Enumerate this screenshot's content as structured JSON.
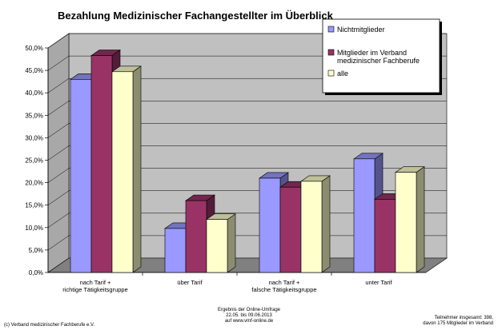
{
  "chart_data": {
    "type": "bar",
    "title": "Bezahlung Medizinischer Fachangestellter im Überblick",
    "categories": [
      [
        "nach Tarif +",
        "richtige Tätigkeitsgruppe"
      ],
      [
        "über Tarif"
      ],
      [
        "nach Tarif +",
        "falsche Tätigkeitsgruppe"
      ],
      [
        "unter Tarif"
      ]
    ],
    "series": [
      {
        "name": "Nichtmitglieder",
        "color": "#9999ff",
        "values": [
          43.0,
          9.8,
          21.0,
          25.3
        ]
      },
      {
        "name": "Mitglieder im Verband medizinischer Fachberufe",
        "color": "#993366",
        "values": [
          48.3,
          16.0,
          19.0,
          16.3
        ]
      },
      {
        "name": "alle",
        "color": "#ffffcc",
        "values": [
          44.7,
          11.8,
          20.3,
          22.3
        ]
      }
    ],
    "ylim": [
      0,
      50
    ],
    "yticks": [
      "0,0%",
      "5,0%",
      "10,0%",
      "15,0%",
      "20,0%",
      "25,0%",
      "30,0%",
      "35,0%",
      "40,0%",
      "45,0%",
      "50,0%"
    ],
    "legend": {
      "position": "top-right",
      "entries": [
        [
          "Nichtmitglieder"
        ],
        [
          "Mitglieder im Verband",
          "medizinischer Fachberufe"
        ],
        [
          "alle"
        ]
      ]
    },
    "grid": true
  },
  "footer": {
    "left": "(c) Verband medizinischer Fachberufe e.V.",
    "center": [
      "Ergebnis der Online-Umfrage",
      "22.05. bis 09.06.2013",
      "auf www.vmf-online.de"
    ],
    "right": [
      "Teilnehmer insgesamt: 398,",
      "davon 175 Mitglieder im Verband"
    ]
  },
  "colors": {
    "plot_area": "#c0c0c0",
    "floor": "#808080"
  }
}
